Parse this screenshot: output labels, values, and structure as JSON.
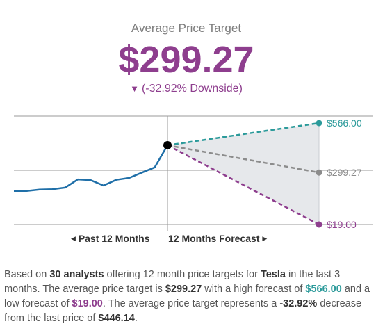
{
  "header": {
    "title": "Average Price Target",
    "price": "$299.27",
    "change_arrow": "▼",
    "change_text": "(-32.92% Downside)"
  },
  "periods": {
    "past": "Past 12 Months",
    "forecast": "12 Months Forecast"
  },
  "chart_data": {
    "type": "line",
    "title": "",
    "colors": {
      "history": "#1f6fa8",
      "high": "#2b9a9a",
      "average": "#8c8c8c",
      "low": "#8e3e8e",
      "band": "#e6e8eb"
    },
    "history_values": [
      200,
      200,
      207,
      209,
      218,
      262,
      258,
      229,
      260,
      270,
      299,
      327,
      446.14
    ],
    "last_price": 446.14,
    "forecast": [
      {
        "name": "high",
        "value": 566.0,
        "label": "$566.00"
      },
      {
        "name": "average",
        "value": 299.27,
        "label": "$299.27"
      },
      {
        "name": "low",
        "value": 19.0,
        "label": "$19.00"
      }
    ],
    "grid": true
  },
  "summary": {
    "p1": "Based on ",
    "analysts": "30 analysts",
    "p2": " offering 12 month price targets for ",
    "company": "Tesla",
    "p3": " in the last 3 months. The average price target is ",
    "avg": "$299.27",
    "p4": " with a high forecast of ",
    "high": "$566.00",
    "p5": " and a low forecast of ",
    "low": "$19.00",
    "p6": ". The average price target represents a ",
    "pct": "-32.92%",
    "p7": " decrease from the last price of ",
    "last": "$446.14",
    "p8": "."
  }
}
